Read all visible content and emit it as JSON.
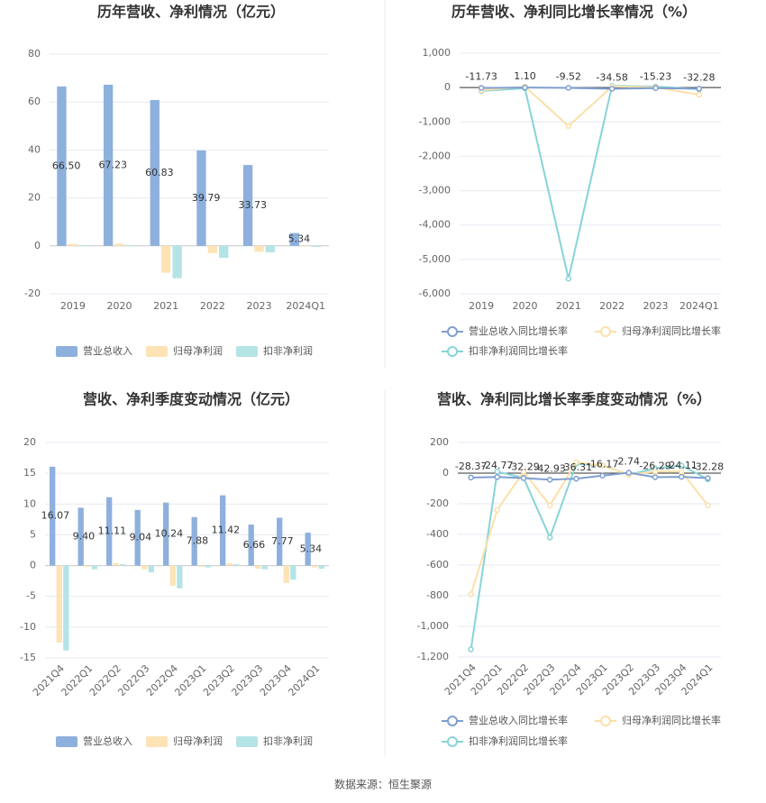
{
  "chart_data": [
    {
      "type": "bar",
      "title": "历年营收、净利情况（亿元）",
      "categories": [
        "2019",
        "2020",
        "2021",
        "2022",
        "2023",
        "2024Q1"
      ],
      "series": [
        {
          "name": "营业总收入",
          "color": "#8eb0dd",
          "values": [
            66.5,
            67.23,
            60.83,
            39.79,
            33.73,
            5.34
          ],
          "value_labels": [
            "66.50",
            "67.23",
            "60.83",
            "39.79",
            "33.73",
            "5.34"
          ]
        },
        {
          "name": "归母净利润",
          "color": "#fde3b5",
          "values": [
            0.8,
            0.9,
            -11.2,
            -3.0,
            -2.5,
            -0.3
          ]
        },
        {
          "name": "扣非净利润",
          "color": "#b5e4e6",
          "values": [
            0.3,
            0.3,
            -13.5,
            -5.0,
            -2.7,
            -0.4
          ]
        }
      ],
      "ylim": [
        -20,
        80
      ],
      "yticks": [
        -20,
        0,
        20,
        40,
        60,
        80
      ],
      "grid": true
    },
    {
      "type": "line",
      "title": "历年营收、净利同比增长率情况（%）",
      "categories": [
        "2019",
        "2020",
        "2021",
        "2022",
        "2023",
        "2024Q1"
      ],
      "series": [
        {
          "name": "营业总收入同比增长率",
          "color": "#7f9fd1",
          "values": [
            -11.73,
            1.1,
            -9.52,
            -34.58,
            -15.23,
            -32.28
          ],
          "value_labels": [
            "-11.73",
            "1.10",
            "-9.52",
            "-34.58",
            "-15.23",
            "-32.28"
          ]
        },
        {
          "name": "归母净利润同比增长率",
          "color": "#fbe0a8",
          "values": [
            -80,
            30,
            -1120,
            30,
            10,
            -210
          ]
        },
        {
          "name": "扣非净利润同比增长率",
          "color": "#86d4d8",
          "values": [
            -100,
            -20,
            -5560,
            50,
            30,
            -50
          ]
        }
      ],
      "ylim": [
        -6000,
        1000
      ],
      "yticks": [
        {
          "value": -6000,
          "label": "-6,000"
        },
        {
          "value": -5000,
          "label": "-5,000"
        },
        {
          "value": -4000,
          "label": "-4,000"
        },
        {
          "value": -3000,
          "label": "-3,000"
        },
        {
          "value": -2000,
          "label": "-2,000"
        },
        {
          "value": -1000,
          "label": "-1,000"
        },
        0,
        {
          "value": 1000,
          "label": "1,000"
        }
      ],
      "grid": true
    },
    {
      "type": "bar",
      "title": "营收、净利季度变动情况（亿元）",
      "categories": [
        "2021Q4",
        "2022Q1",
        "2022Q2",
        "2022Q3",
        "2022Q4",
        "2023Q1",
        "2023Q2",
        "2023Q3",
        "2023Q4",
        "2024Q1"
      ],
      "series": [
        {
          "name": "营业总收入",
          "color": "#8eb0dd",
          "values": [
            16.07,
            9.4,
            11.11,
            9.04,
            10.24,
            7.88,
            11.42,
            6.66,
            7.77,
            5.34
          ],
          "value_labels": [
            "16.07",
            "9.40",
            "11.11",
            "9.04",
            "10.24",
            "7.88",
            "11.42",
            "6.66",
            "7.77",
            "5.34"
          ]
        },
        {
          "name": "归母净利润",
          "color": "#fde3b5",
          "values": [
            -12.5,
            -0.2,
            0.4,
            -0.6,
            -3.3,
            -0.2,
            0.4,
            -0.5,
            -2.8,
            -0.3
          ]
        },
        {
          "name": "扣非净利润",
          "color": "#b5e4e6",
          "values": [
            -13.8,
            -0.6,
            0.2,
            -1.1,
            -3.7,
            -0.3,
            0.2,
            -0.6,
            -2.3,
            -0.5
          ]
        }
      ],
      "ylim": [
        -15,
        20
      ],
      "yticks": [
        -15,
        -10,
        -5,
        0,
        5,
        10,
        15,
        20
      ],
      "grid": true
    },
    {
      "type": "line",
      "title": "营收、净利同比增长率季度变动情况（%）",
      "categories": [
        "2021Q4",
        "2022Q1",
        "2022Q2",
        "2022Q3",
        "2022Q4",
        "2023Q1",
        "2023Q2",
        "2023Q3",
        "2023Q4",
        "2024Q1"
      ],
      "series": [
        {
          "name": "营业总收入同比增长率",
          "color": "#7f9fd1",
          "values": [
            -28.37,
            -24.77,
            -32.29,
            -42.93,
            -36.31,
            -16.17,
            2.74,
            -26.29,
            -24.11,
            -32.28
          ]
        },
        {
          "name": "归母净利润同比增长率",
          "color": "#fbe0a8",
          "values": [
            -790,
            -240,
            10,
            -210,
            70,
            50,
            -10,
            10,
            10,
            -210
          ]
        },
        {
          "name": "扣非净利润同比增长率",
          "color": "#86d4d8",
          "values": [
            -1150,
            10,
            -30,
            -420,
            60,
            50,
            -10,
            30,
            50,
            -40
          ]
        }
      ],
      "ylim": [
        -1200,
        200
      ],
      "yticks": [
        {
          "value": -1200,
          "label": "-1,200"
        },
        {
          "value": -1000,
          "label": "-1,000"
        },
        -800,
        -600,
        -400,
        -200,
        0,
        200
      ],
      "grid": true
    }
  ],
  "source": "数据来源：恒生聚源"
}
